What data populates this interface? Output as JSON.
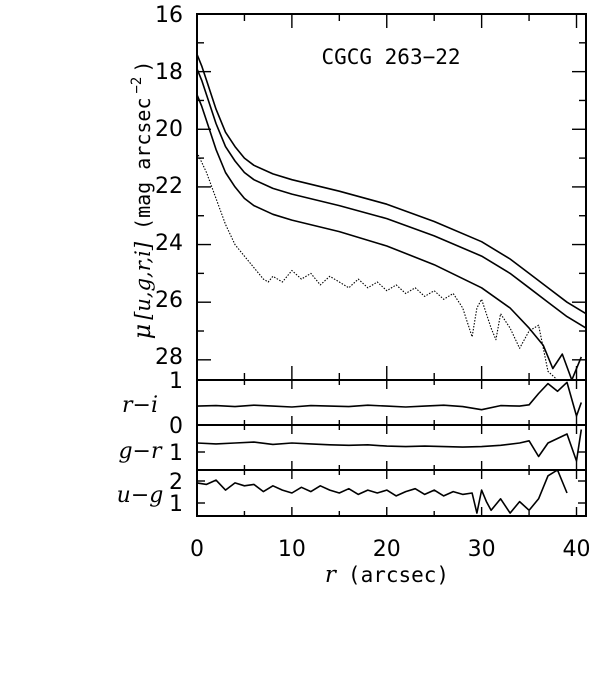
{
  "chart_data": {
    "type": "line",
    "title": "CGCG 263−22",
    "xlabel": {
      "symbol": "r",
      "unit": "(arcsec)"
    },
    "xlim": [
      0,
      41
    ],
    "xticks": [
      "0",
      "10",
      "20",
      "30",
      "40"
    ],
    "panels": [
      {
        "id": "mu",
        "ylabel": {
          "symbol": "μ",
          "bands": "[u,g,r,i]",
          "unit": "(mag arcsec",
          "exp": "−2",
          "close": ")"
        },
        "ylim": [
          28.7,
          16
        ],
        "yticks": [
          "16",
          "18",
          "20",
          "22",
          "24",
          "26",
          "28"
        ],
        "series": [
          {
            "band": "i",
            "style": "solid",
            "x": [
              0,
              0.5,
              1,
              2,
              3,
              4,
              5,
              6,
              8,
              10,
              15,
              20,
              25,
              30,
              33,
              35,
              37,
              39,
              41
            ],
            "y": [
              17.4,
              17.8,
              18.3,
              19.3,
              20.1,
              20.6,
              21.0,
              21.25,
              21.55,
              21.75,
              22.15,
              22.6,
              23.2,
              23.9,
              24.5,
              25.0,
              25.5,
              26.0,
              26.4
            ]
          },
          {
            "band": "r",
            "style": "solid",
            "x": [
              0,
              0.5,
              1,
              2,
              3,
              4,
              5,
              6,
              8,
              10,
              15,
              20,
              25,
              30,
              33,
              35,
              37,
              39,
              41
            ],
            "y": [
              17.9,
              18.3,
              18.8,
              19.8,
              20.6,
              21.1,
              21.5,
              21.75,
              22.05,
              22.25,
              22.65,
              23.1,
              23.7,
              24.4,
              25.0,
              25.5,
              26.0,
              26.5,
              26.9
            ]
          },
          {
            "band": "g",
            "style": "solid",
            "x": [
              0,
              0.5,
              1,
              2,
              3,
              4,
              5,
              6,
              8,
              10,
              15,
              20,
              25,
              30,
              33,
              35,
              36.5,
              37.5,
              38.5,
              39.5,
              40.5
            ],
            "y": [
              18.8,
              19.2,
              19.7,
              20.7,
              21.5,
              22.0,
              22.4,
              22.65,
              22.95,
              23.15,
              23.55,
              24.05,
              24.7,
              25.5,
              26.2,
              26.9,
              27.5,
              28.3,
              27.8,
              28.7,
              27.9
            ]
          },
          {
            "band": "u",
            "style": "dotted",
            "x": [
              0,
              1,
              2,
              3,
              4,
              5,
              6,
              7,
              7.5,
              8,
              9,
              10,
              11,
              12,
              13,
              14,
              15,
              16,
              17,
              18,
              19,
              20,
              21,
              22,
              23,
              24,
              25,
              26,
              27,
              28,
              29,
              29.5,
              30,
              31,
              31.5,
              32,
              33,
              34,
              35,
              36,
              37,
              38
            ],
            "y": [
              20.8,
              21.5,
              22.4,
              23.3,
              24.0,
              24.4,
              24.8,
              25.2,
              25.3,
              25.1,
              25.3,
              24.9,
              25.2,
              25.0,
              25.4,
              25.1,
              25.3,
              25.5,
              25.2,
              25.5,
              25.3,
              25.6,
              25.4,
              25.7,
              25.5,
              25.8,
              25.6,
              25.9,
              25.7,
              26.2,
              27.2,
              26.2,
              25.9,
              26.9,
              27.3,
              26.4,
              26.9,
              27.6,
              27.0,
              26.8,
              28.4,
              28.7
            ]
          }
        ]
      },
      {
        "id": "r-i",
        "ylabel": "r−i",
        "ylim": [
          0,
          1
        ],
        "yticks": [
          "1",
          "0"
        ],
        "series": [
          {
            "x": [
              0,
              2,
              4,
              6,
              8,
              10,
              12,
              14,
              16,
              18,
              20,
              22,
              24,
              26,
              28,
              30,
              32,
              34,
              35,
              36,
              37,
              38,
              39,
              40,
              40.5
            ],
            "y": [
              0.42,
              0.43,
              0.41,
              0.44,
              0.42,
              0.4,
              0.43,
              0.42,
              0.41,
              0.44,
              0.42,
              0.4,
              0.42,
              0.44,
              0.41,
              0.34,
              0.43,
              0.42,
              0.45,
              0.7,
              0.92,
              0.75,
              0.95,
              0.2,
              0.5
            ]
          }
        ]
      },
      {
        "id": "g-r",
        "ylabel": "g−r",
        "ylim": [
          0.3,
          1.3
        ],
        "yticks": [
          "1"
        ],
        "series": [
          {
            "x": [
              0,
              2,
              4,
              6,
              8,
              10,
              12,
              14,
              16,
              18,
              20,
              22,
              24,
              26,
              28,
              30,
              32,
              34,
              35,
              36,
              37,
              38,
              39,
              40,
              40.5
            ],
            "y": [
              0.9,
              0.88,
              0.9,
              0.92,
              0.87,
              0.9,
              0.88,
              0.86,
              0.85,
              0.86,
              0.83,
              0.82,
              0.83,
              0.82,
              0.81,
              0.82,
              0.85,
              0.9,
              0.95,
              0.6,
              0.9,
              1.0,
              1.1,
              0.5,
              1.2
            ]
          }
        ]
      },
      {
        "id": "u-g",
        "ylabel": "u−g",
        "ylim": [
          0.7,
          2.3
        ],
        "yticks": [
          "2",
          "1"
        ],
        "series": [
          {
            "x": [
              0,
              1,
              2,
              3,
              4,
              5,
              6,
              7,
              8,
              9,
              10,
              11,
              12,
              13,
              14,
              15,
              16,
              17,
              18,
              19,
              20,
              21,
              22,
              23,
              24,
              25,
              26,
              27,
              28,
              29,
              29.5,
              30,
              30.5,
              31,
              32,
              33,
              34,
              35,
              36,
              37,
              38,
              39
            ],
            "y": [
              1.85,
              1.8,
              1.95,
              1.6,
              1.85,
              1.75,
              1.8,
              1.55,
              1.75,
              1.6,
              1.5,
              1.7,
              1.55,
              1.75,
              1.6,
              1.5,
              1.65,
              1.45,
              1.6,
              1.5,
              1.6,
              1.4,
              1.55,
              1.65,
              1.45,
              1.6,
              1.4,
              1.55,
              1.45,
              1.5,
              0.8,
              1.6,
              1.2,
              0.9,
              1.3,
              0.8,
              1.2,
              0.9,
              1.3,
              2.1,
              2.3,
              1.5
            ]
          }
        ]
      }
    ]
  }
}
